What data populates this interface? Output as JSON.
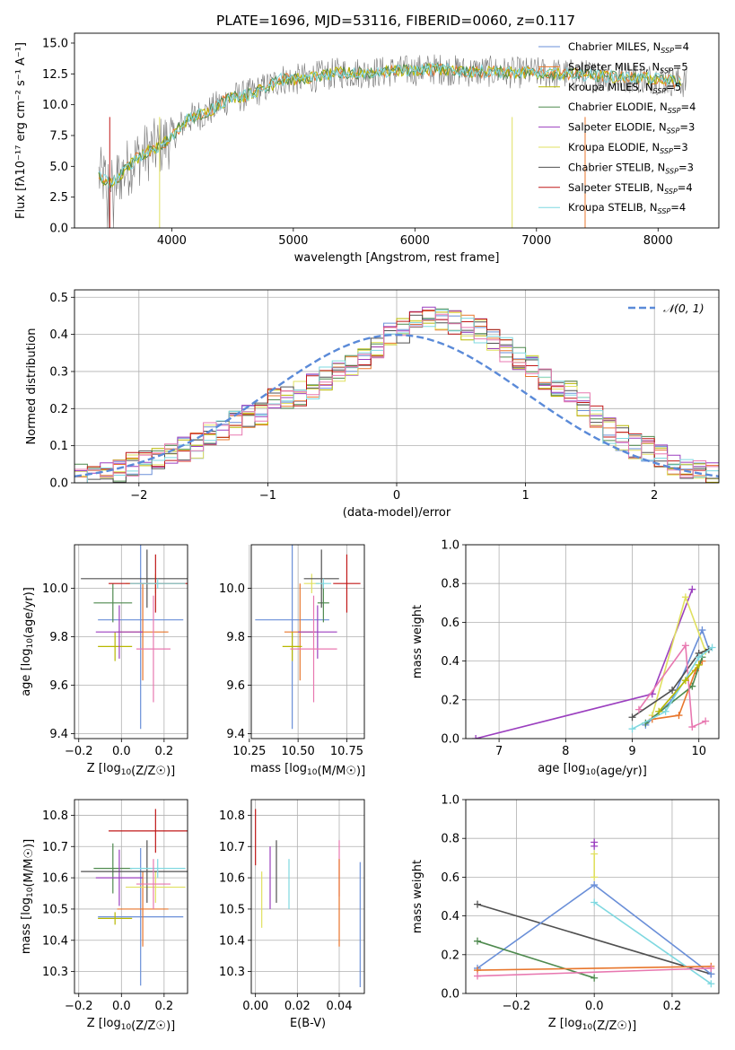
{
  "figure_title": "PLATE=1696, MJD=53116, FIBERID=0060, z=0.117",
  "colors": {
    "Chabrier MILES": "#6a8fd8",
    "Salpeter MILES": "#e8762c",
    "Kroupa MILES": "#b8b800",
    "Chabrier ELODIE": "#4f8a4f",
    "Salpeter ELODIE": "#9b3fbf",
    "Kroupa ELODIE": "#e0e060",
    "Chabrier STELIB": "#505050",
    "Salpeter STELIB": "#c01818",
    "Kroupa STELIB": "#7fd8e0",
    "pink": "#e878b0",
    "gauss": "#5a8ad8"
  },
  "chart_data": [
    {
      "id": "spectrum",
      "type": "line",
      "title": "PLATE=1696, MJD=53116, FIBERID=0060, z=0.117",
      "xlabel": "wavelength [Angstrom, rest frame]",
      "ylabel": "Flux [fλ10⁻¹⁷ erg cm⁻² s⁻¹ A⁻¹]",
      "xlim": [
        3200,
        8500
      ],
      "ylim": [
        0,
        15.8
      ],
      "xticks": [
        4000,
        5000,
        6000,
        7000,
        8000
      ],
      "yticks": [
        0.0,
        2.5,
        5.0,
        7.5,
        10.0,
        12.5,
        15.0
      ],
      "grid": false,
      "legend_position": "right",
      "data_x": [
        3400,
        3500,
        3600,
        3700,
        3800,
        3900,
        4000,
        4100,
        4200,
        4300,
        4400,
        4500,
        4600,
        4700,
        4800,
        4900,
        5000,
        5200,
        5400,
        5600,
        5800,
        6000,
        6200,
        6400,
        6600,
        6800,
        7000,
        7200,
        7400,
        7600,
        7800,
        8000,
        8200
      ],
      "data_y": [
        4.2,
        3.6,
        4.5,
        5.6,
        6.2,
        6.6,
        7.4,
        8.6,
        9.1,
        9.4,
        10.1,
        10.6,
        10.7,
        11.1,
        11.5,
        12.1,
        12.0,
        12.3,
        12.6,
        12.6,
        12.7,
        12.8,
        12.9,
        12.7,
        12.7,
        12.6,
        12.6,
        12.5,
        12.4,
        12.3,
        12.2,
        12.1,
        11.8
      ],
      "series": [
        {
          "name": "Chabrier MILES, N_SSP=4",
          "label_main": "Chabrier MILES, N",
          "label_sub": "SSP",
          "label_end": "=4"
        },
        {
          "name": "Salpeter MILES, N_SSP=5",
          "label_main": "Salpeter MILES, N",
          "label_sub": "SSP",
          "label_end": "=5"
        },
        {
          "name": "Kroupa MILES, N_SSP=5",
          "label_main": "Kroupa MILES, N",
          "label_sub": "SSP",
          "label_end": "=5"
        },
        {
          "name": "Chabrier ELODIE, N_SSP=4",
          "label_main": "Chabrier ELODIE, N",
          "label_sub": "SSP",
          "label_end": "=4"
        },
        {
          "name": "Salpeter ELODIE, N_SSP=3",
          "label_main": "Salpeter ELODIE, N",
          "label_sub": "SSP",
          "label_end": "=3"
        },
        {
          "name": "Kroupa ELODIE, N_SSP=3",
          "label_main": "Kroupa ELODIE, N",
          "label_sub": "SSP",
          "label_end": "=3"
        },
        {
          "name": "Chabrier STELIB, N_SSP=3",
          "label_main": "Chabrier STELIB, N",
          "label_sub": "SSP",
          "label_end": "=3"
        },
        {
          "name": "Salpeter STELIB, N_SSP=4",
          "label_main": "Salpeter STELIB, N",
          "label_sub": "SSP",
          "label_end": "=4"
        },
        {
          "name": "Kroupa STELIB, N_SSP=4",
          "label_main": "Kroupa STELIB, N",
          "label_sub": "SSP",
          "label_end": "=4"
        }
      ]
    },
    {
      "id": "residuals",
      "type": "line",
      "xlabel": "(data-model)/error",
      "ylabel": "Normed distribution",
      "xlim": [
        -2.5,
        2.5
      ],
      "ylim": [
        0,
        0.52
      ],
      "xticks": [
        -2,
        -1,
        0,
        1,
        2
      ],
      "yticks": [
        0.0,
        0.1,
        0.2,
        0.3,
        0.4,
        0.5
      ],
      "grid": true,
      "legend": "𝒩(0, 1)",
      "legend_position": "top-right",
      "hist_bins": [
        -2.5,
        2.5,
        0.1
      ],
      "hist_values": [
        0.018,
        0.022,
        0.027,
        0.03,
        0.048,
        0.055,
        0.06,
        0.07,
        0.09,
        0.1,
        0.13,
        0.14,
        0.16,
        0.18,
        0.19,
        0.22,
        0.23,
        0.24,
        0.26,
        0.28,
        0.3,
        0.32,
        0.34,
        0.36,
        0.4,
        0.41,
        0.43,
        0.44,
        0.44,
        0.43,
        0.42,
        0.41,
        0.38,
        0.36,
        0.34,
        0.31,
        0.28,
        0.26,
        0.24,
        0.21,
        0.18,
        0.14,
        0.12,
        0.1,
        0.09,
        0.07,
        0.05,
        0.04,
        0.03,
        0.02
      ]
    },
    {
      "id": "age-vs-Z",
      "type": "scatter",
      "xlabel": "Z [log10(Z/Z☉)]",
      "ylabel": "age  [log10(age/yr)]",
      "xlim": [
        -0.22,
        0.31
      ],
      "ylim": [
        9.38,
        10.18
      ],
      "xticks": [
        -0.2,
        0.0,
        0.2
      ],
      "yticks": [
        9.4,
        9.6,
        9.8,
        10.0
      ],
      "grid": true,
      "points": [
        {
          "c": "Chabrier MILES",
          "x": 0.09,
          "y": 9.87,
          "xerr": 0.2,
          "yerr": 0.45
        },
        {
          "c": "Salpeter MILES",
          "x": 0.1,
          "y": 9.82,
          "xerr": 0.12,
          "yerr": 0.2
        },
        {
          "c": "Kroupa MILES",
          "x": -0.03,
          "y": 9.76,
          "xerr": 0.08,
          "yerr": 0.06
        },
        {
          "c": "Chabrier ELODIE",
          "x": -0.04,
          "y": 9.94,
          "xerr": 0.09,
          "yerr": 0.08
        },
        {
          "c": "Salpeter ELODIE",
          "x": -0.01,
          "y": 9.82,
          "xerr": 0.11,
          "yerr": 0.11
        },
        {
          "c": "Kroupa ELODIE",
          "x": 0.16,
          "y": 10.02,
          "xerr": 0.14,
          "yerr": 0.04
        },
        {
          "c": "Chabrier STELIB",
          "x": 0.12,
          "y": 10.04,
          "xerr": 0.31,
          "yerr": 0.12
        },
        {
          "c": "Salpeter STELIB",
          "x": 0.16,
          "y": 10.02,
          "xerr": 0.22,
          "yerr": 0.12
        },
        {
          "c": "Kroupa STELIB",
          "x": 0.17,
          "y": 10.02,
          "xerr": 0.13,
          "yerr": 0.02
        },
        {
          "c": "pink",
          "x": 0.15,
          "y": 9.75,
          "xerr": 0.08,
          "yerr": 0.22
        }
      ]
    },
    {
      "id": "age-vs-mass",
      "type": "scatter",
      "xlabel": "mass [log10(M/M☉)]",
      "ylabel": "",
      "xlim": [
        10.26,
        10.84
      ],
      "ylim": [
        9.38,
        10.18
      ],
      "xticks": [
        10.25,
        10.5,
        10.75
      ],
      "yticks": [
        9.4,
        9.6,
        9.8,
        10.0
      ],
      "grid": true,
      "points": [
        {
          "c": "Chabrier MILES",
          "x": 10.47,
          "y": 9.87,
          "xerr": 0.19,
          "yerr": 0.45
        },
        {
          "c": "Salpeter MILES",
          "x": 10.51,
          "y": 9.82,
          "xerr": 0.08,
          "yerr": 0.2
        },
        {
          "c": "Kroupa MILES",
          "x": 10.47,
          "y": 9.76,
          "xerr": 0.05,
          "yerr": 0.06
        },
        {
          "c": "Chabrier ELODIE",
          "x": 10.63,
          "y": 9.94,
          "xerr": 0.03,
          "yerr": 0.08
        },
        {
          "c": "Salpeter ELODIE",
          "x": 10.6,
          "y": 9.82,
          "xerr": 0.1,
          "yerr": 0.11
        },
        {
          "c": "Kroupa ELODIE",
          "x": 10.57,
          "y": 10.02,
          "xerr": 0.04,
          "yerr": 0.04
        },
        {
          "c": "Chabrier STELIB",
          "x": 10.62,
          "y": 10.04,
          "xerr": 0.09,
          "yerr": 0.12
        },
        {
          "c": "Salpeter STELIB",
          "x": 10.75,
          "y": 10.02,
          "xerr": 0.07,
          "yerr": 0.12
        },
        {
          "c": "Kroupa STELIB",
          "x": 10.63,
          "y": 10.02,
          "xerr": 0.04,
          "yerr": 0.02
        },
        {
          "c": "pink",
          "x": 10.58,
          "y": 9.75,
          "xerr": 0.12,
          "yerr": 0.22
        }
      ]
    },
    {
      "id": "massweight-vs-age",
      "type": "line",
      "xlabel": "age  [log10(age/yr)]",
      "ylabel": "mass weight",
      "xlim": [
        6.5,
        10.3
      ],
      "ylim": [
        0,
        1.0
      ],
      "xticks": [
        7,
        8,
        9,
        10
      ],
      "yticks": [
        0.0,
        0.2,
        0.4,
        0.6,
        0.8,
        1.0
      ],
      "grid": true,
      "series": [
        {
          "c": "Salpeter ELODIE",
          "x": [
            6.65,
            9.3,
            9.9
          ],
          "y": [
            0.0,
            0.23,
            0.77
          ]
        },
        {
          "c": "Chabrier MILES",
          "x": [
            9.2,
            9.6,
            10.05,
            10.15
          ],
          "y": [
            0.07,
            0.2,
            0.56,
            0.46
          ]
        },
        {
          "c": "Kroupa ELODIE",
          "x": [
            9.3,
            9.8,
            10.1
          ],
          "y": [
            0.12,
            0.73,
            0.45
          ]
        },
        {
          "c": "Chabrier STELIB",
          "x": [
            9.0,
            9.6,
            10.0,
            10.15
          ],
          "y": [
            0.11,
            0.25,
            0.44,
            0.46
          ]
        },
        {
          "c": "Salpeter MILES",
          "x": [
            9.3,
            9.7,
            9.95,
            10.05
          ],
          "y": [
            0.1,
            0.12,
            0.35,
            0.4
          ]
        },
        {
          "c": "Chabrier ELODIE",
          "x": [
            9.2,
            9.9,
            10.05
          ],
          "y": [
            0.08,
            0.27,
            0.42
          ]
        },
        {
          "c": "pink",
          "x": [
            9.1,
            9.8,
            9.9,
            10.1
          ],
          "y": [
            0.15,
            0.48,
            0.06,
            0.09
          ]
        },
        {
          "c": "Kroupa STELIB",
          "x": [
            9.0,
            9.5,
            10.0,
            10.2
          ],
          "y": [
            0.05,
            0.14,
            0.42,
            0.47
          ]
        },
        {
          "c": "Kroupa MILES",
          "x": [
            9.4,
            9.8,
            10.0
          ],
          "y": [
            0.14,
            0.3,
            0.38
          ]
        }
      ]
    },
    {
      "id": "mass-vs-Z",
      "type": "scatter",
      "xlabel": "Z [log10(Z/Z☉)]",
      "ylabel": "mass [log10(M/M☉)]",
      "xlim": [
        -0.22,
        0.31
      ],
      "ylim": [
        10.23,
        10.85
      ],
      "xticks": [
        -0.2,
        0.0,
        0.2
      ],
      "yticks": [
        10.3,
        10.4,
        10.5,
        10.6,
        10.7,
        10.8
      ],
      "grid": true,
      "points": [
        {
          "c": "Chabrier MILES",
          "x": 0.09,
          "y": 10.475,
          "xerr": 0.2,
          "yerr": 0.22
        },
        {
          "c": "Salpeter MILES",
          "x": 0.1,
          "y": 10.5,
          "xerr": 0.12,
          "yerr": 0.12
        },
        {
          "c": "Kroupa MILES",
          "x": -0.03,
          "y": 10.47,
          "xerr": 0.08,
          "yerr": 0.02
        },
        {
          "c": "Chabrier ELODIE",
          "x": -0.04,
          "y": 10.63,
          "xerr": 0.09,
          "yerr": 0.08
        },
        {
          "c": "Salpeter ELODIE",
          "x": -0.01,
          "y": 10.6,
          "xerr": 0.11,
          "yerr": 0.09
        },
        {
          "c": "Kroupa ELODIE",
          "x": 0.16,
          "y": 10.57,
          "xerr": 0.14,
          "yerr": 0.05
        },
        {
          "c": "Chabrier STELIB",
          "x": 0.12,
          "y": 10.62,
          "xerr": 0.31,
          "yerr": 0.1
        },
        {
          "c": "Salpeter STELIB",
          "x": 0.16,
          "y": 10.75,
          "xerr": 0.22,
          "yerr": 0.07
        },
        {
          "c": "Kroupa STELIB",
          "x": 0.17,
          "y": 10.63,
          "xerr": 0.13,
          "yerr": 0.03
        },
        {
          "c": "pink",
          "x": 0.15,
          "y": 10.58,
          "xerr": 0.08,
          "yerr": 0.08
        }
      ]
    },
    {
      "id": "mass-vs-EBV",
      "type": "scatter",
      "xlabel": "E(B-V)",
      "ylabel": "",
      "xlim": [
        -0.002,
        0.052
      ],
      "ylim": [
        10.23,
        10.85
      ],
      "xticks": [
        0.0,
        0.02,
        0.04
      ],
      "yticks": [
        10.3,
        10.4,
        10.5,
        10.6,
        10.7,
        10.8
      ],
      "grid": true,
      "points": [
        {
          "c": "Salpeter STELIB",
          "x": 0.0,
          "y": 10.73,
          "xerr": 0,
          "yerr": 0.09
        },
        {
          "c": "Kroupa ELODIE",
          "x": 0.003,
          "y": 10.53,
          "xerr": 0,
          "yerr": 0.09
        },
        {
          "c": "Salpeter ELODIE",
          "x": 0.007,
          "y": 10.6,
          "xerr": 0,
          "yerr": 0.1
        },
        {
          "c": "Chabrier STELIB",
          "x": 0.01,
          "y": 10.62,
          "xerr": 0,
          "yerr": 0.1
        },
        {
          "c": "Kroupa STELIB",
          "x": 0.016,
          "y": 10.58,
          "xerr": 0,
          "yerr": 0.08
        },
        {
          "c": "pink",
          "x": 0.04,
          "y": 10.63,
          "xerr": 0,
          "yerr": 0.09
        },
        {
          "c": "Salpeter MILES",
          "x": 0.04,
          "y": 10.52,
          "xerr": 0,
          "yerr": 0.14
        },
        {
          "c": "Chabrier MILES",
          "x": 0.05,
          "y": 10.45,
          "xerr": 0,
          "yerr": 0.2
        }
      ]
    },
    {
      "id": "massweight-vs-Z",
      "type": "line",
      "xlabel": "Z [log10(Z/Z☉)]",
      "ylabel": "mass weight",
      "xlim": [
        -0.33,
        0.32
      ],
      "ylim": [
        0,
        1.0
      ],
      "xticks": [
        -0.2,
        0.0,
        0.2
      ],
      "yticks": [
        0.0,
        0.2,
        0.4,
        0.6,
        0.8,
        1.0
      ],
      "grid": true,
      "series": [
        {
          "c": "Chabrier STELIB",
          "x": [
            -0.3,
            0.3
          ],
          "y": [
            0.46,
            0.1
          ]
        },
        {
          "c": "Chabrier MILES",
          "x": [
            -0.3,
            0.0,
            0.3
          ],
          "y": [
            0.13,
            0.56,
            0.1
          ]
        },
        {
          "c": "Chabrier ELODIE",
          "x": [
            -0.3,
            0.0
          ],
          "y": [
            0.27,
            0.08
          ]
        },
        {
          "c": "Kroupa STELIB",
          "x": [
            0.0,
            0.3
          ],
          "y": [
            0.47,
            0.05
          ]
        },
        {
          "c": "Salpeter MILES",
          "x": [
            -0.3,
            0.3
          ],
          "y": [
            0.12,
            0.14
          ]
        },
        {
          "c": "pink",
          "x": [
            -0.3,
            0.3
          ],
          "y": [
            0.09,
            0.13
          ]
        },
        {
          "c": "Salpeter ELODIE",
          "x": [
            0.0,
            0.0
          ],
          "y": [
            0.76,
            0.78
          ]
        },
        {
          "c": "Kroupa ELODIE",
          "x": [
            0.0,
            0.0
          ],
          "y": [
            0.6,
            0.72
          ]
        }
      ]
    }
  ]
}
